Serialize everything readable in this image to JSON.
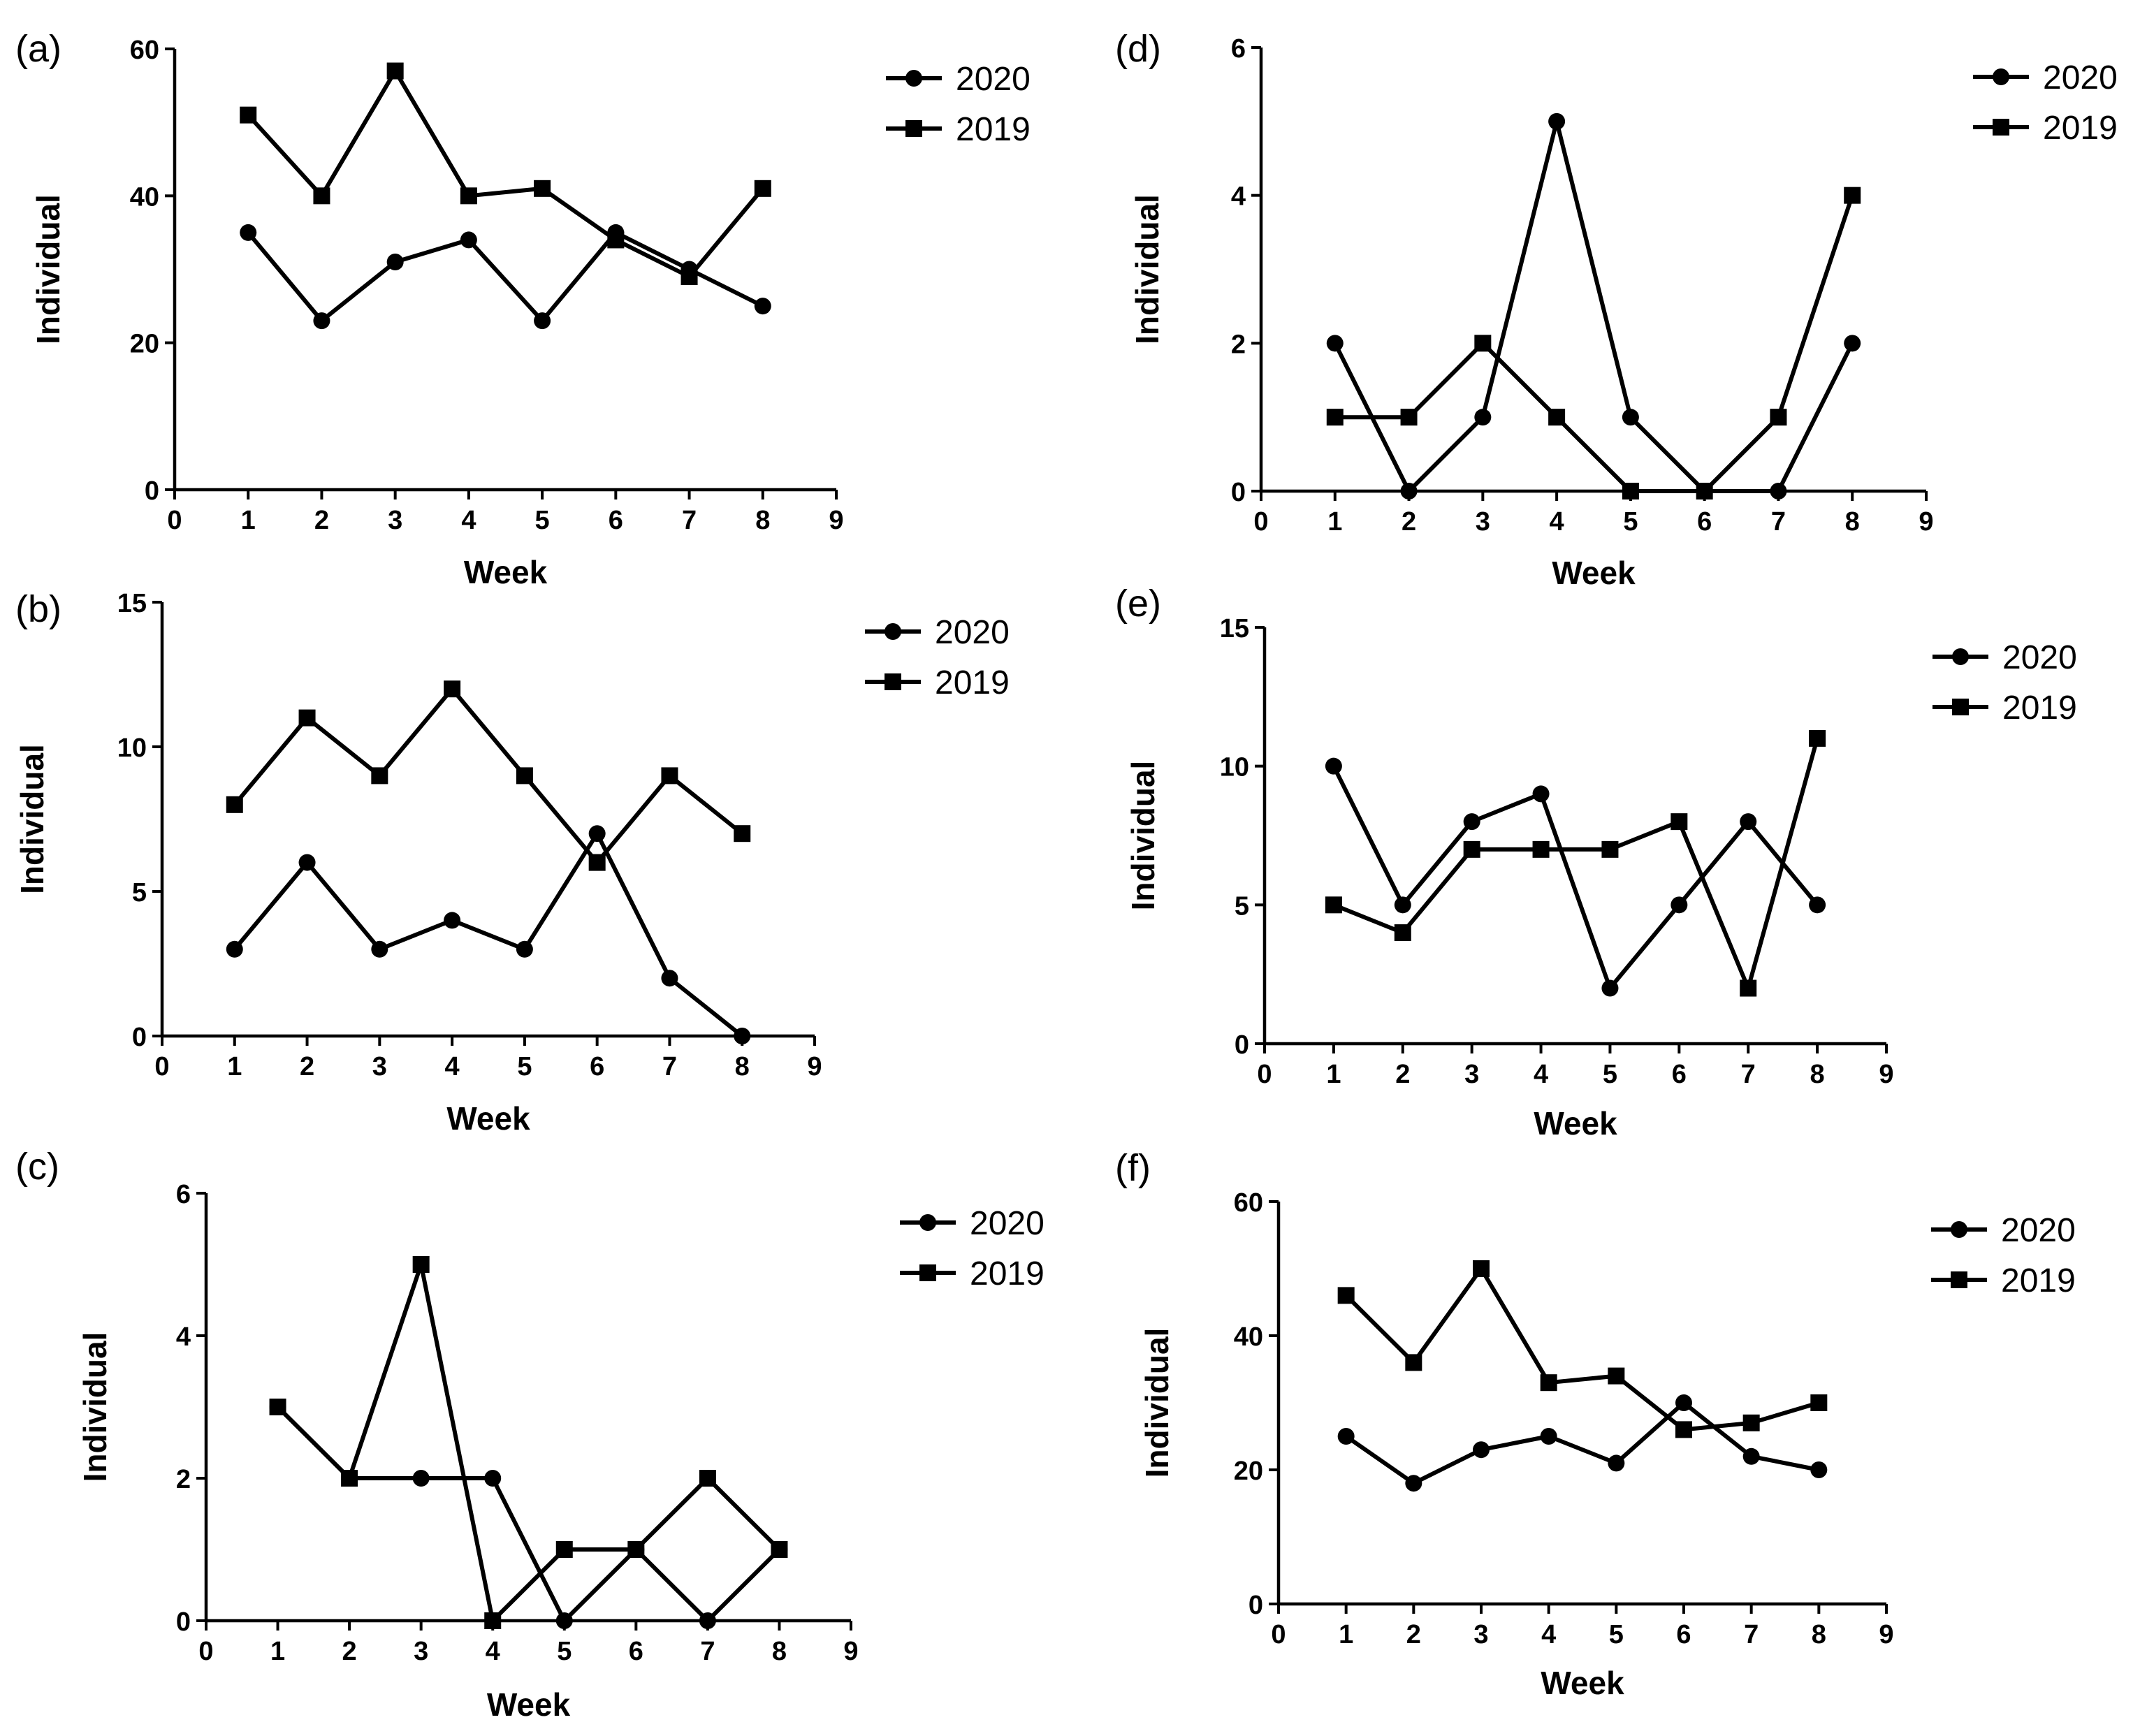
{
  "colors": {
    "line": "#000000",
    "background": "#ffffff"
  },
  "chart_data": [
    {
      "panel": "(a)",
      "type": "line",
      "xlabel": "Week",
      "ylabel": "Individual",
      "xlim": [
        0,
        9
      ],
      "ylim": [
        0,
        60
      ],
      "yticks": [
        0,
        20,
        40,
        60
      ],
      "xticks": [
        0,
        1,
        2,
        3,
        4,
        5,
        6,
        7,
        8,
        9
      ],
      "x": [
        1,
        2,
        3,
        4,
        5,
        6,
        7,
        8
      ],
      "series": [
        {
          "name": "2020",
          "marker": "circle",
          "values": [
            35,
            23,
            31,
            34,
            23,
            35,
            30,
            25
          ]
        },
        {
          "name": "2019",
          "marker": "square",
          "values": [
            51,
            40,
            57,
            40,
            41,
            34,
            29,
            41
          ]
        }
      ]
    },
    {
      "panel": "(b)",
      "type": "line",
      "xlabel": "Week",
      "ylabel": "Individual",
      "xlim": [
        0,
        9
      ],
      "ylim": [
        0,
        15
      ],
      "yticks": [
        0,
        5,
        10,
        15
      ],
      "xticks": [
        0,
        1,
        2,
        3,
        4,
        5,
        6,
        7,
        8,
        9
      ],
      "x": [
        1,
        2,
        3,
        4,
        5,
        6,
        7,
        8
      ],
      "series": [
        {
          "name": "2020",
          "marker": "circle",
          "values": [
            3,
            6,
            3,
            4,
            3,
            7,
            2,
            0
          ]
        },
        {
          "name": "2019",
          "marker": "square",
          "values": [
            8,
            11,
            9,
            12,
            9,
            6,
            9,
            7
          ]
        }
      ]
    },
    {
      "panel": "(c)",
      "type": "line",
      "xlabel": "Week",
      "ylabel": "Individual",
      "xlim": [
        0,
        9
      ],
      "ylim": [
        0,
        6
      ],
      "yticks": [
        0,
        2,
        4,
        6
      ],
      "xticks": [
        0,
        1,
        2,
        3,
        4,
        5,
        6,
        7,
        8,
        9
      ],
      "x": [
        1,
        2,
        3,
        4,
        5,
        6,
        7,
        8
      ],
      "series": [
        {
          "name": "2020",
          "marker": "circle",
          "values": [
            3,
            2,
            2,
            2,
            0,
            1,
            0,
            1
          ]
        },
        {
          "name": "2019",
          "marker": "square",
          "values": [
            3,
            2,
            5,
            0,
            1,
            1,
            2,
            1
          ]
        }
      ]
    },
    {
      "panel": "(d)",
      "type": "line",
      "xlabel": "Week",
      "ylabel": "Individual",
      "xlim": [
        0,
        9
      ],
      "ylim": [
        0,
        6
      ],
      "yticks": [
        0,
        2,
        4,
        6
      ],
      "xticks": [
        0,
        1,
        2,
        3,
        4,
        5,
        6,
        7,
        8,
        9
      ],
      "x": [
        1,
        2,
        3,
        4,
        5,
        6,
        7,
        8
      ],
      "series": [
        {
          "name": "2020",
          "marker": "circle",
          "values": [
            2,
            0,
            1,
            5,
            1,
            0,
            0,
            2
          ]
        },
        {
          "name": "2019",
          "marker": "square",
          "values": [
            1,
            1,
            2,
            1,
            0,
            0,
            1,
            4
          ]
        }
      ]
    },
    {
      "panel": "(e)",
      "type": "line",
      "xlabel": "Week",
      "ylabel": "Individual",
      "xlim": [
        0,
        9
      ],
      "ylim": [
        0,
        15
      ],
      "yticks": [
        0,
        5,
        10,
        15
      ],
      "xticks": [
        0,
        1,
        2,
        3,
        4,
        5,
        6,
        7,
        8,
        9
      ],
      "x": [
        1,
        2,
        3,
        4,
        5,
        6,
        7,
        8
      ],
      "series": [
        {
          "name": "2020",
          "marker": "circle",
          "values": [
            10,
            5,
            8,
            9,
            2,
            5,
            8,
            5
          ]
        },
        {
          "name": "2019",
          "marker": "square",
          "values": [
            5,
            4,
            7,
            7,
            7,
            8,
            2,
            11
          ]
        }
      ]
    },
    {
      "panel": "(f)",
      "type": "line",
      "xlabel": "Week",
      "ylabel": "Individual",
      "xlim": [
        0,
        9
      ],
      "ylim": [
        0,
        60
      ],
      "yticks": [
        0,
        20,
        40,
        60
      ],
      "xticks": [
        0,
        1,
        2,
        3,
        4,
        5,
        6,
        7,
        8,
        9
      ],
      "x": [
        1,
        2,
        3,
        4,
        5,
        6,
        7,
        8
      ],
      "series": [
        {
          "name": "2020",
          "marker": "circle",
          "values": [
            25,
            18,
            23,
            25,
            21,
            30,
            22,
            20
          ]
        },
        {
          "name": "2019",
          "marker": "square",
          "values": [
            46,
            36,
            50,
            33,
            34,
            26,
            27,
            30
          ]
        }
      ]
    }
  ]
}
